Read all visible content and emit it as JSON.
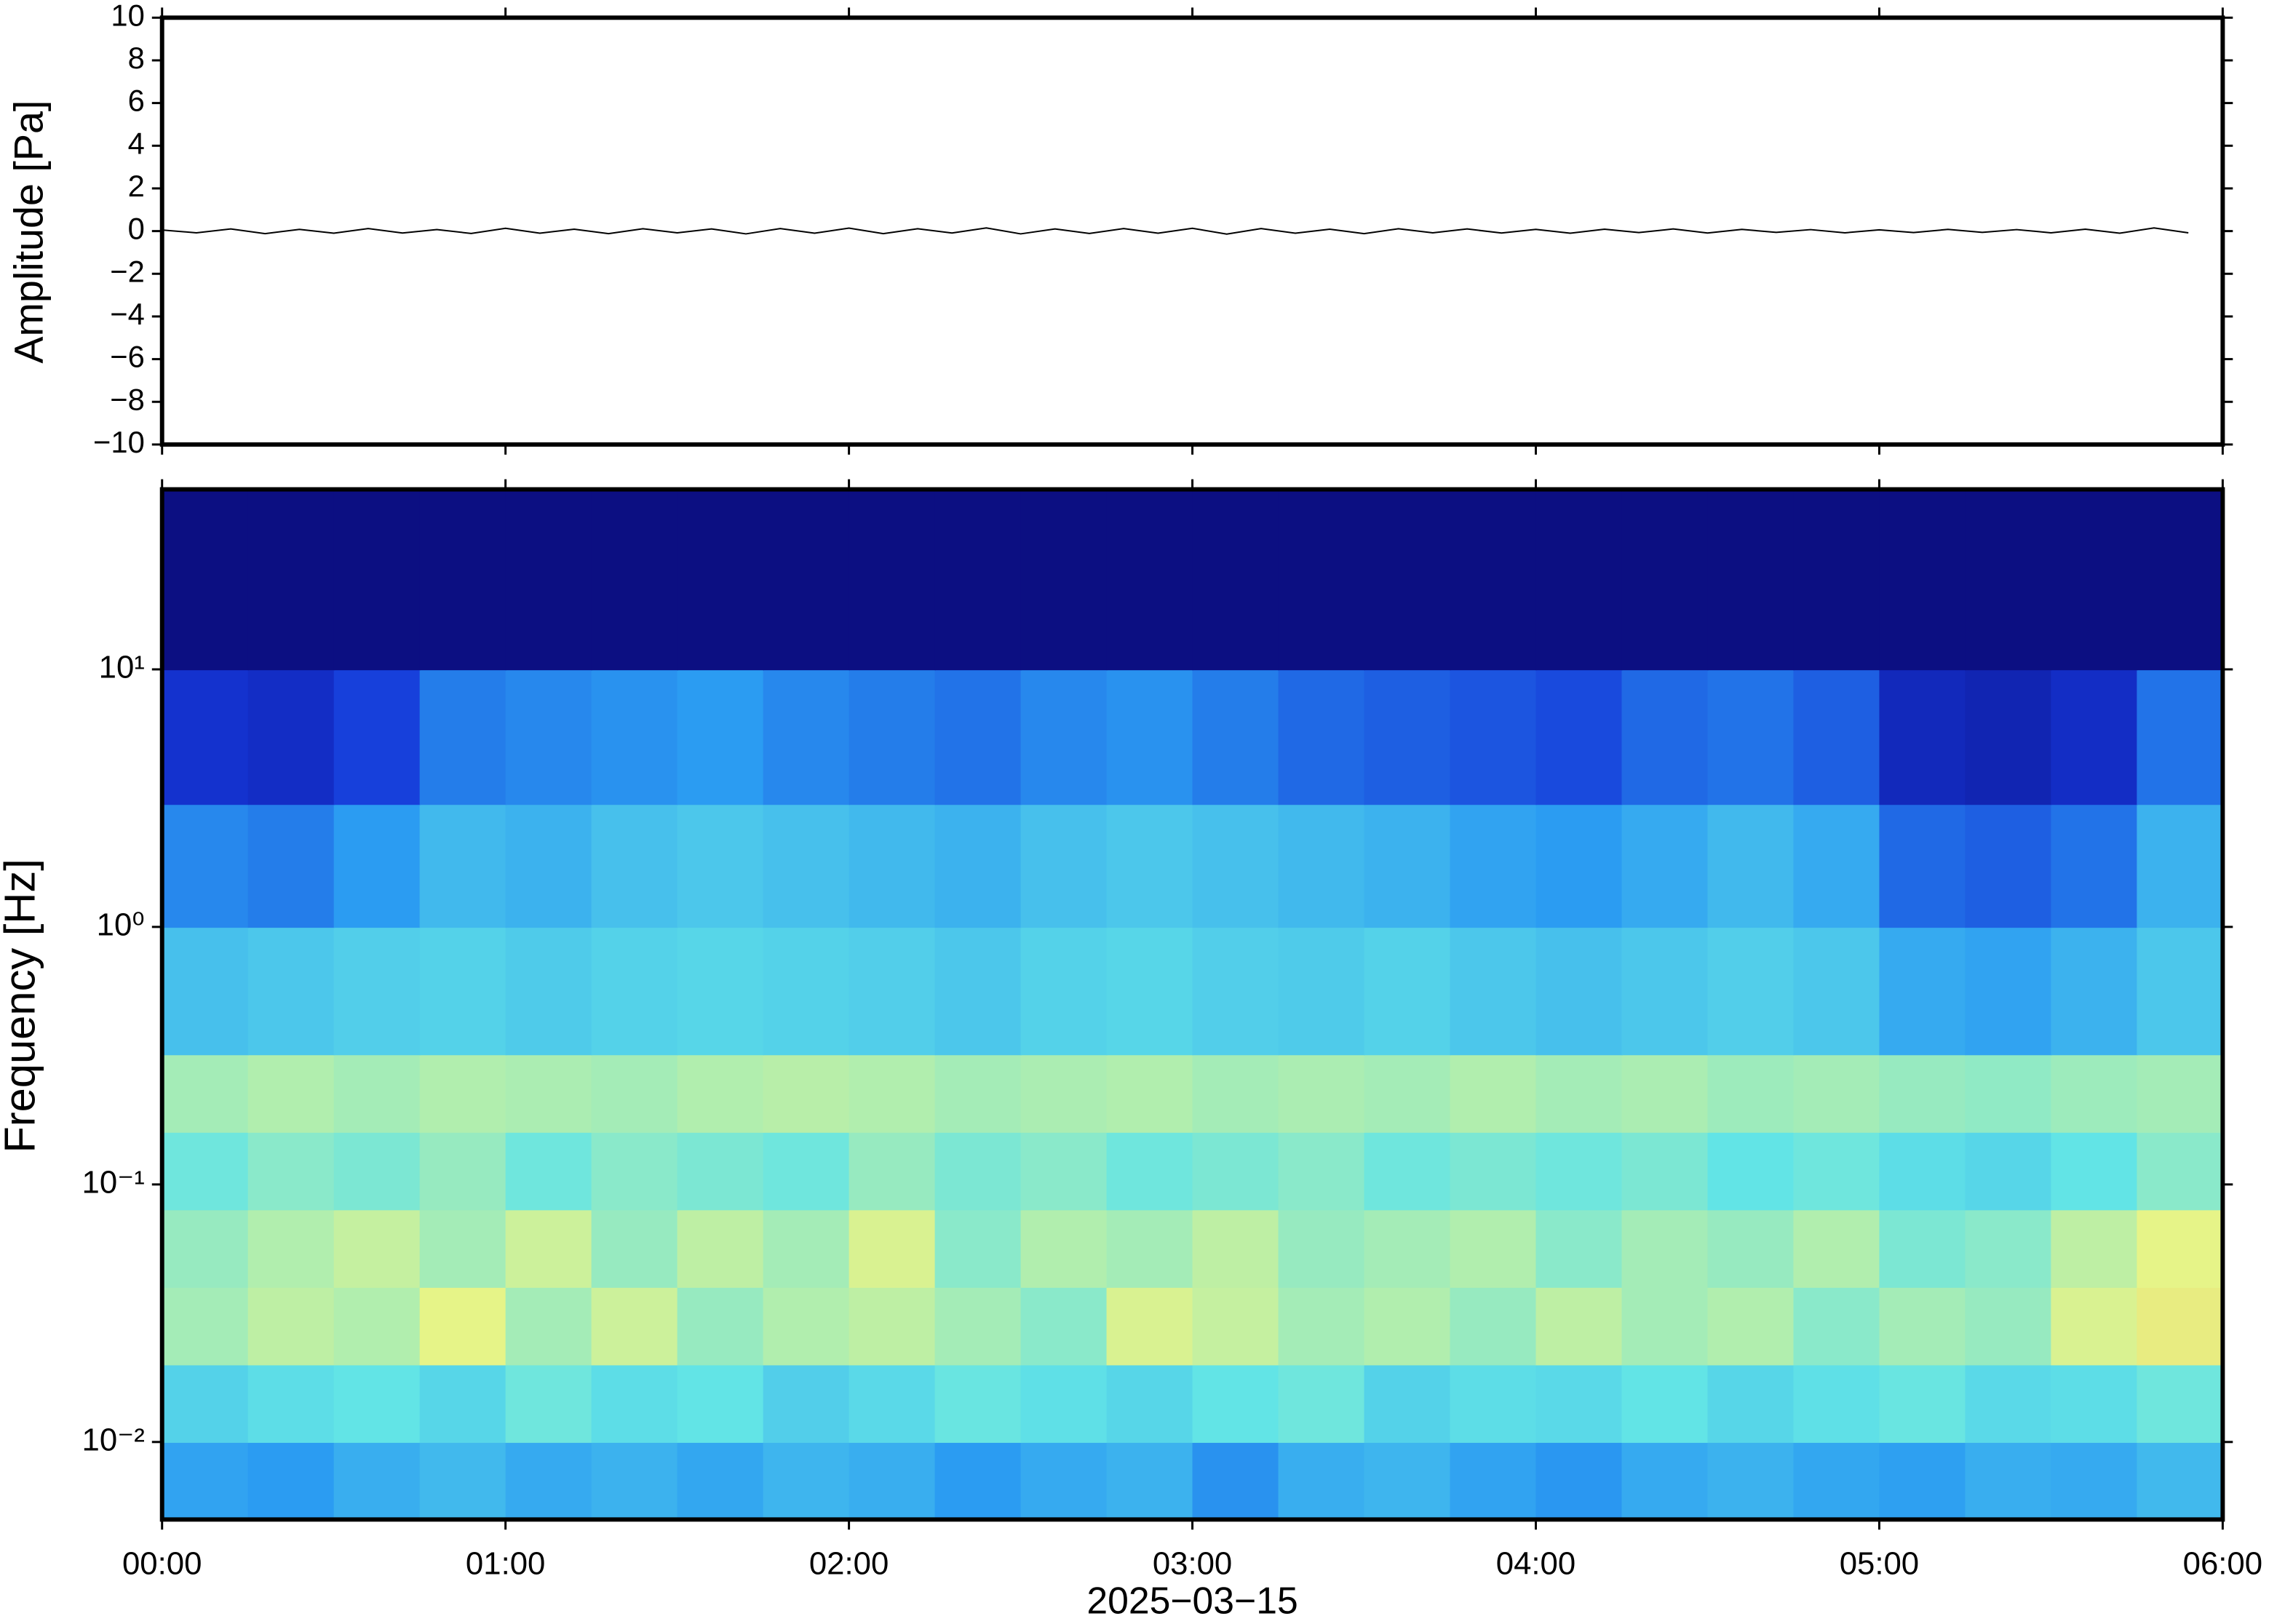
{
  "chart_data": [
    {
      "type": "line",
      "ylabel": "Amplitude [Pa]",
      "color": "#000000",
      "x": [
        0,
        6,
        12,
        18,
        24,
        30,
        36,
        42,
        48,
        54,
        60,
        66,
        72,
        78,
        84,
        90,
        96,
        102,
        108,
        114,
        120,
        126,
        132,
        138,
        144,
        150,
        156,
        162,
        168,
        174,
        180,
        186,
        192,
        198,
        204,
        210,
        216,
        222,
        228,
        234,
        240,
        246,
        252,
        258,
        264,
        270,
        276,
        282,
        288,
        294,
        300,
        306,
        312,
        318,
        324,
        330,
        336,
        342,
        348,
        354
      ],
      "values": [
        0.05,
        -0.08,
        0.1,
        -0.12,
        0.08,
        -0.1,
        0.12,
        -0.09,
        0.07,
        -0.11,
        0.13,
        -0.1,
        0.09,
        -0.12,
        0.11,
        -0.08,
        0.1,
        -0.13,
        0.12,
        -0.1,
        0.14,
        -0.12,
        0.11,
        -0.09,
        0.15,
        -0.13,
        0.1,
        -0.11,
        0.12,
        -0.1,
        0.13,
        -0.14,
        0.12,
        -0.1,
        0.09,
        -0.12,
        0.11,
        -0.08,
        0.1,
        -0.09,
        0.08,
        -0.1,
        0.09,
        -0.07,
        0.1,
        -0.09,
        0.08,
        -0.06,
        0.07,
        -0.08,
        0.06,
        -0.07,
        0.08,
        -0.06,
        0.07,
        -0.08,
        0.09,
        -0.1,
        0.15,
        -0.08
      ],
      "xlim": [
        0,
        360
      ],
      "xticks": [
        0,
        60,
        120,
        180,
        240,
        300,
        360
      ],
      "ylim": [
        -10,
        10
      ],
      "yticks": [
        {
          "value": -10,
          "label": "−10"
        },
        {
          "value": -8,
          "label": "−8"
        },
        {
          "value": -6,
          "label": "−6"
        },
        {
          "value": -4,
          "label": "−4"
        },
        {
          "value": -2,
          "label": "−2"
        },
        0,
        2,
        4,
        6,
        8,
        10
      ]
    },
    {
      "type": "heatmap",
      "ylabel": "Frequency [Hz]",
      "xlabel": "2025−03−15",
      "log_y": true,
      "xlim": [
        0,
        360
      ],
      "xticks": [
        {
          "value": 0,
          "label": "00:00"
        },
        {
          "value": 60,
          "label": "01:00"
        },
        {
          "value": 120,
          "label": "02:00"
        },
        {
          "value": 180,
          "label": "03:00"
        },
        {
          "value": 240,
          "label": "04:00"
        },
        {
          "value": 300,
          "label": "05:00"
        },
        {
          "value": 360,
          "label": "06:00"
        }
      ],
      "ylim": [
        0.005,
        50
      ],
      "yticks": [
        {
          "value": 0.01,
          "label": "10⁻²"
        },
        {
          "value": 0.1,
          "label": "10⁻¹"
        },
        {
          "value": 1,
          "label": "10⁰"
        },
        {
          "value": 10,
          "label": "10¹"
        }
      ],
      "x_edges": [
        0,
        15,
        30,
        45,
        60,
        75,
        90,
        105,
        120,
        135,
        150,
        165,
        180,
        195,
        210,
        225,
        240,
        255,
        270,
        285,
        300,
        315,
        330,
        345,
        360
      ],
      "y_edges": [
        0.005,
        0.01,
        0.02,
        0.04,
        0.08,
        0.16,
        0.32,
        1,
        3,
        10,
        50
      ],
      "colorscale": [
        "#0b0b78",
        "#1536d8",
        "#2b9cf2",
        "#62e4e6",
        "#e6f488",
        "#f8a446"
      ],
      "zlim": [
        0,
        1
      ],
      "z": [
        [
          0.42,
          0.4,
          0.45,
          0.48,
          0.44,
          0.46,
          0.43,
          0.47,
          0.45,
          0.4,
          0.44,
          0.46,
          0.38,
          0.45,
          0.47,
          0.42,
          0.39,
          0.44,
          0.46,
          0.43,
          0.41,
          0.45,
          0.44,
          0.48
        ],
        [
          0.55,
          0.58,
          0.6,
          0.56,
          0.62,
          0.58,
          0.6,
          0.54,
          0.57,
          0.61,
          0.59,
          0.56,
          0.6,
          0.62,
          0.55,
          0.58,
          0.57,
          0.6,
          0.56,
          0.59,
          0.61,
          0.57,
          0.58,
          0.62
        ],
        [
          0.7,
          0.74,
          0.72,
          0.8,
          0.7,
          0.76,
          0.68,
          0.72,
          0.74,
          0.7,
          0.66,
          0.78,
          0.75,
          0.7,
          0.72,
          0.68,
          0.74,
          0.7,
          0.72,
          0.66,
          0.7,
          0.68,
          0.78,
          0.82
        ],
        [
          0.68,
          0.72,
          0.75,
          0.7,
          0.76,
          0.68,
          0.74,
          0.7,
          0.78,
          0.66,
          0.72,
          0.7,
          0.74,
          0.68,
          0.7,
          0.72,
          0.66,
          0.7,
          0.68,
          0.72,
          0.64,
          0.66,
          0.74,
          0.8
        ],
        [
          0.62,
          0.66,
          0.64,
          0.68,
          0.62,
          0.66,
          0.64,
          0.62,
          0.68,
          0.64,
          0.66,
          0.62,
          0.64,
          0.66,
          0.62,
          0.64,
          0.62,
          0.64,
          0.6,
          0.62,
          0.58,
          0.56,
          0.6,
          0.66
        ],
        [
          0.7,
          0.72,
          0.7,
          0.72,
          0.71,
          0.7,
          0.72,
          0.73,
          0.72,
          0.7,
          0.71,
          0.72,
          0.7,
          0.71,
          0.7,
          0.72,
          0.7,
          0.71,
          0.69,
          0.7,
          0.68,
          0.67,
          0.69,
          0.7
        ],
        [
          0.5,
          0.52,
          0.54,
          0.55,
          0.53,
          0.55,
          0.56,
          0.55,
          0.54,
          0.52,
          0.55,
          0.56,
          0.54,
          0.53,
          0.55,
          0.52,
          0.5,
          0.52,
          0.54,
          0.52,
          0.44,
          0.42,
          0.46,
          0.52
        ],
        [
          0.36,
          0.34,
          0.4,
          0.48,
          0.46,
          0.5,
          0.52,
          0.5,
          0.48,
          0.46,
          0.5,
          0.52,
          0.5,
          0.48,
          0.46,
          0.42,
          0.4,
          0.44,
          0.48,
          0.44,
          0.3,
          0.28,
          0.32,
          0.46
        ],
        [
          0.18,
          0.16,
          0.22,
          0.34,
          0.36,
          0.38,
          0.4,
          0.36,
          0.34,
          0.32,
          0.36,
          0.38,
          0.34,
          0.3,
          0.28,
          0.26,
          0.24,
          0.3,
          0.32,
          0.28,
          0.14,
          0.12,
          0.16,
          0.32
        ],
        [
          0.02,
          0.02,
          0.02,
          0.02,
          0.02,
          0.02,
          0.02,
          0.02,
          0.02,
          0.02,
          0.02,
          0.02,
          0.02,
          0.02,
          0.02,
          0.02,
          0.02,
          0.02,
          0.02,
          0.02,
          0.02,
          0.02,
          0.02,
          0.02
        ]
      ]
    }
  ]
}
